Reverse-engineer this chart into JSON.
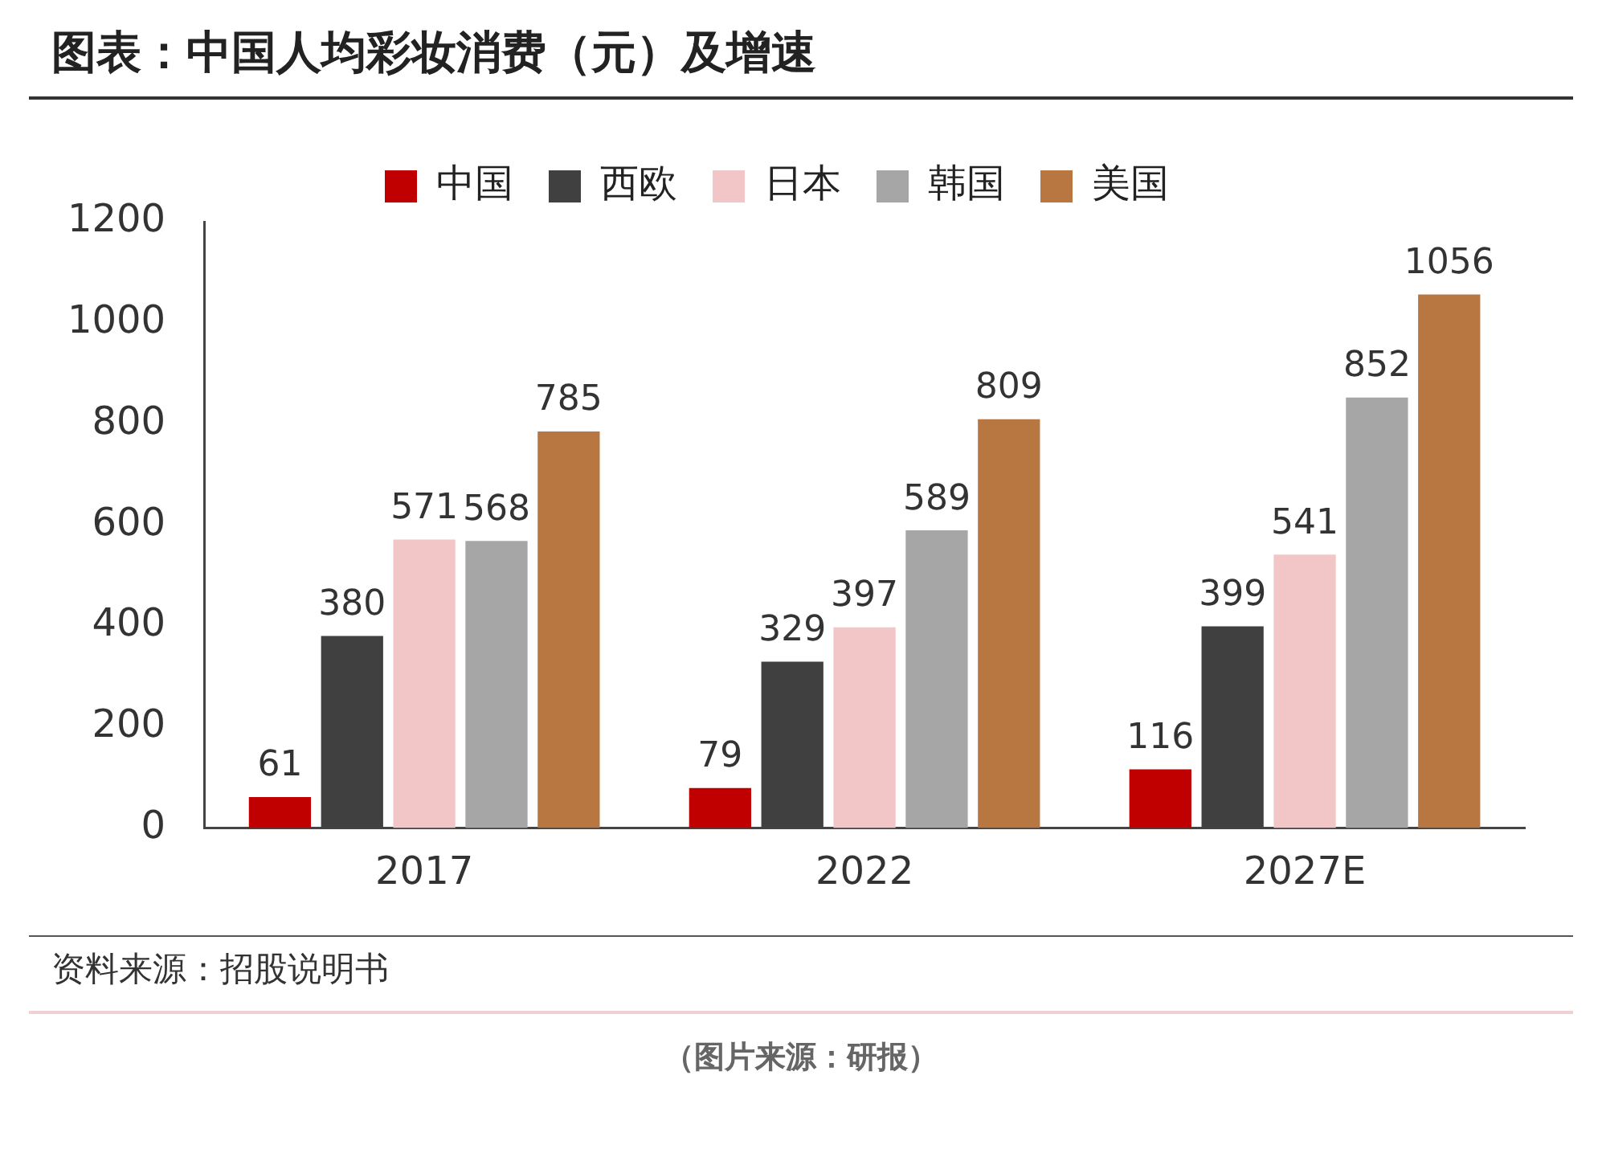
{
  "chart_data": {
    "type": "bar",
    "title": "图表：中国人均彩妆消费（元）及增速",
    "categories": [
      "2017",
      "2022",
      "2027E"
    ],
    "series": [
      {
        "name": "中国",
        "color": "#c00000",
        "values": [
          61,
          79,
          116
        ]
      },
      {
        "name": "西欧",
        "color": "#404040",
        "values": [
          380,
          329,
          399
        ]
      },
      {
        "name": "日本",
        "color": "#f2c6c6",
        "values": [
          571,
          397,
          541
        ]
      },
      {
        "name": "韩国",
        "color": "#a6a6a6",
        "values": [
          568,
          589,
          852
        ]
      },
      {
        "name": "美国",
        "color": "#b87640",
        "values": [
          785,
          809,
          1056
        ]
      }
    ],
    "ylim": [
      0,
      1200
    ],
    "yticks": [
      0,
      200,
      400,
      600,
      800,
      1000,
      1200
    ],
    "grid": false,
    "legend": "top",
    "data_labels": true,
    "annotations": [
      "资料来源：招股说明书",
      "（图片来源：研报）"
    ]
  }
}
